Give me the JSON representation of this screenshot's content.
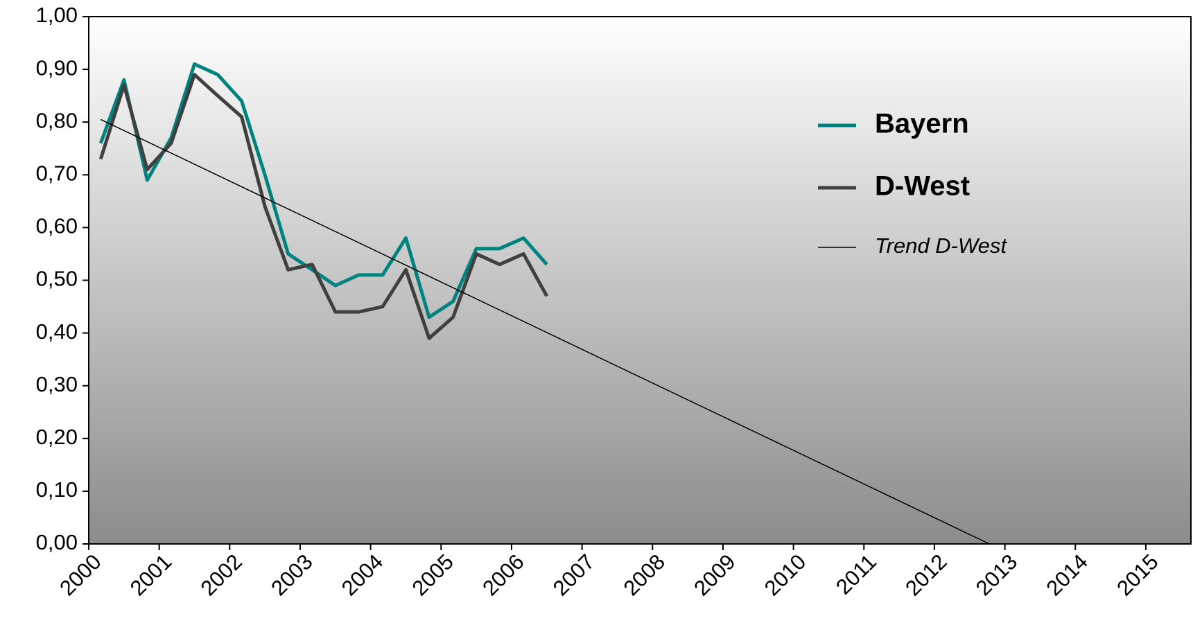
{
  "chart_data": {
    "type": "line",
    "x": [
      2000.17,
      2000.5,
      2000.83,
      2001.17,
      2001.5,
      2001.83,
      2002.17,
      2002.5,
      2002.83,
      2003.17,
      2003.5,
      2003.83,
      2004.17,
      2004.5,
      2004.83,
      2005.17,
      2005.5,
      2005.83,
      2006.17,
      2006.5
    ],
    "series": [
      {
        "name": "Bayern",
        "color": "#00827f",
        "values": [
          0.76,
          0.88,
          0.69,
          0.77,
          0.91,
          0.89,
          0.84,
          0.7,
          0.55,
          0.52,
          0.49,
          0.51,
          0.51,
          0.58,
          0.43,
          0.46,
          0.56,
          0.56,
          0.58,
          0.53
        ]
      },
      {
        "name": "D-West",
        "color": "#404040",
        "values": [
          0.73,
          0.87,
          0.71,
          0.76,
          0.89,
          0.85,
          0.81,
          0.64,
          0.52,
          0.53,
          0.44,
          0.44,
          0.45,
          0.52,
          0.39,
          0.43,
          0.55,
          0.53,
          0.55,
          0.47
        ]
      },
      {
        "name": "Trend D-West",
        "color": "#000000",
        "x": [
          2000.17,
          2012.78
        ],
        "values": [
          0.805,
          0
        ]
      }
    ],
    "xlim": [
      2000,
      2015.64
    ],
    "xticks": [
      2000,
      2001,
      2002,
      2003,
      2004,
      2005,
      2006,
      2007,
      2008,
      2009,
      2010,
      2011,
      2012,
      2013,
      2014,
      2015
    ],
    "ylim": [
      0,
      1
    ],
    "yticks": [
      {
        "value": 0,
        "label": "0,00"
      },
      {
        "value": 0.1,
        "label": "0,10"
      },
      {
        "value": 0.2,
        "label": "0,20"
      },
      {
        "value": 0.3,
        "label": "0,30"
      },
      {
        "value": 0.4,
        "label": "0,40"
      },
      {
        "value": 0.5,
        "label": "0,50"
      },
      {
        "value": 0.6,
        "label": "0,60"
      },
      {
        "value": 0.7,
        "label": "0,70"
      },
      {
        "value": 0.8,
        "label": "0,80"
      },
      {
        "value": 0.9,
        "label": "0,90"
      },
      {
        "value": 1,
        "label": "1,00"
      }
    ],
    "grid": false
  }
}
